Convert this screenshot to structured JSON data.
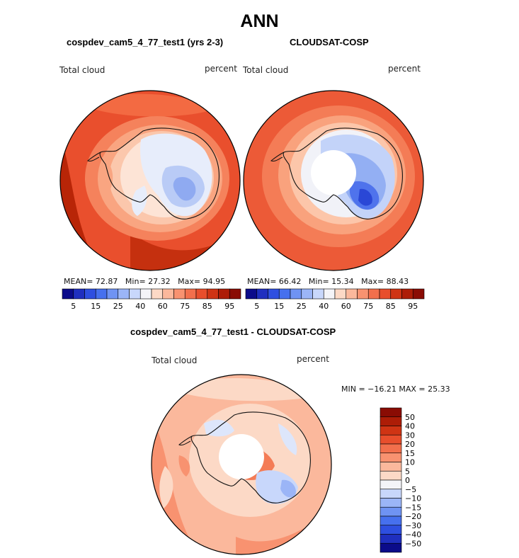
{
  "figure": {
    "title": "ANN",
    "panels": [
      {
        "header": "cospdev_cam5_4_77_test1 (yrs 2-3)",
        "field_label": "Total cloud",
        "units": "percent",
        "stats": {
          "mean_label": "MEAN=",
          "mean": "72.87",
          "min_label": "Min=",
          "min": "27.32",
          "max_label": "Max=",
          "max": "94.95"
        }
      },
      {
        "header": "CLOUDSAT-COSP",
        "field_label": "Total cloud",
        "units": "percent",
        "stats": {
          "mean_label": "MEAN=",
          "mean": "66.42",
          "min_label": "Min=",
          "min": "15.34",
          "max_label": "Max=",
          "max": "88.43"
        }
      },
      {
        "header": "cospdev_cam5_4_77_test1 - CLOUDSAT-COSP",
        "field_label": "Total cloud",
        "units": "percent",
        "stats_text": "MIN = −16.21  MAX =   25.33"
      }
    ]
  },
  "chart_data": [
    {
      "type": "heatmap",
      "projection": "south-polar-stereographic",
      "title": "cospdev_cam5_4_77_test1 (yrs 2-3)",
      "variable": "Total cloud",
      "units": "percent",
      "mean": 72.87,
      "min": 27.32,
      "max": 94.95,
      "colorbar": {
        "levels": [
          5,
          10,
          15,
          20,
          25,
          30,
          40,
          50,
          60,
          70,
          75,
          80,
          85,
          90,
          95
        ],
        "tick_labels": [
          "5",
          "15",
          "25",
          "40",
          "60",
          "75",
          "85",
          "95"
        ],
        "colors": [
          "#0b0b8a",
          "#1f2fbf",
          "#2e4fe0",
          "#4670ee",
          "#6f93f3",
          "#9bb5f7",
          "#c8d7fb",
          "#f4f4f8",
          "#fcd9c6",
          "#fbb89c",
          "#f89270",
          "#f26f4c",
          "#e84e2c",
          "#cf3414",
          "#ad1d07",
          "#8a0c04"
        ]
      }
    },
    {
      "type": "heatmap",
      "projection": "south-polar-stereographic",
      "title": "CLOUDSAT-COSP",
      "variable": "Total cloud",
      "units": "percent",
      "mean": 66.42,
      "min": 15.34,
      "max": 88.43,
      "colorbar": {
        "levels": [
          5,
          10,
          15,
          20,
          25,
          30,
          40,
          50,
          60,
          70,
          75,
          80,
          85,
          90,
          95
        ],
        "tick_labels": [
          "5",
          "15",
          "25",
          "40",
          "60",
          "75",
          "85",
          "95"
        ],
        "colors": [
          "#0b0b8a",
          "#1f2fbf",
          "#2e4fe0",
          "#4670ee",
          "#6f93f3",
          "#9bb5f7",
          "#c8d7fb",
          "#f4f4f8",
          "#fcd9c6",
          "#fbb89c",
          "#f89270",
          "#f26f4c",
          "#e84e2c",
          "#cf3414",
          "#ad1d07",
          "#8a0c04"
        ]
      }
    },
    {
      "type": "heatmap",
      "projection": "south-polar-stereographic",
      "title": "cospdev_cam5_4_77_test1 - CLOUDSAT-COSP",
      "variable": "Total cloud",
      "units": "percent",
      "min": -16.21,
      "max": 25.33,
      "colorbar": {
        "orientation": "vertical",
        "tick_labels": [
          "50",
          "40",
          "30",
          "20",
          "15",
          "10",
          "5",
          "0",
          "−5",
          "−10",
          "−15",
          "−20",
          "−30",
          "−40",
          "−50"
        ],
        "colors": [
          "#8a0c04",
          "#ad1d07",
          "#cf3414",
          "#e84e2c",
          "#f26f4c",
          "#f89270",
          "#fbb89c",
          "#fcd9c6",
          "#f4f4f8",
          "#c8d7fb",
          "#9bb5f7",
          "#6f93f3",
          "#4670ee",
          "#2e4fe0",
          "#1f2fbf",
          "#0b0b8a"
        ]
      }
    }
  ]
}
